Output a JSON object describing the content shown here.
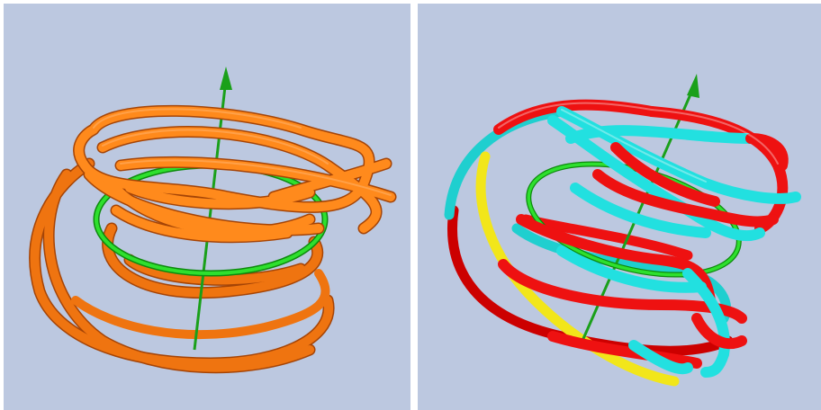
{
  "scene": {
    "background_color": "#bcc8e0",
    "separator_color": "#ffffff",
    "axis_color": "#1aa01a",
    "ring_color": "#1ecc1e"
  },
  "panels": [
    {
      "id": "left",
      "tube_colors": [
        "#ef7410",
        "#ff8a1c",
        "#b84c08"
      ],
      "description_icon": "orange-knot-tube"
    },
    {
      "id": "right",
      "tube_colors": [
        "#ee1111",
        "#22e0e0",
        "#f2e61a"
      ],
      "description_icon": "red-cyan-yellow-knot-tube"
    }
  ]
}
